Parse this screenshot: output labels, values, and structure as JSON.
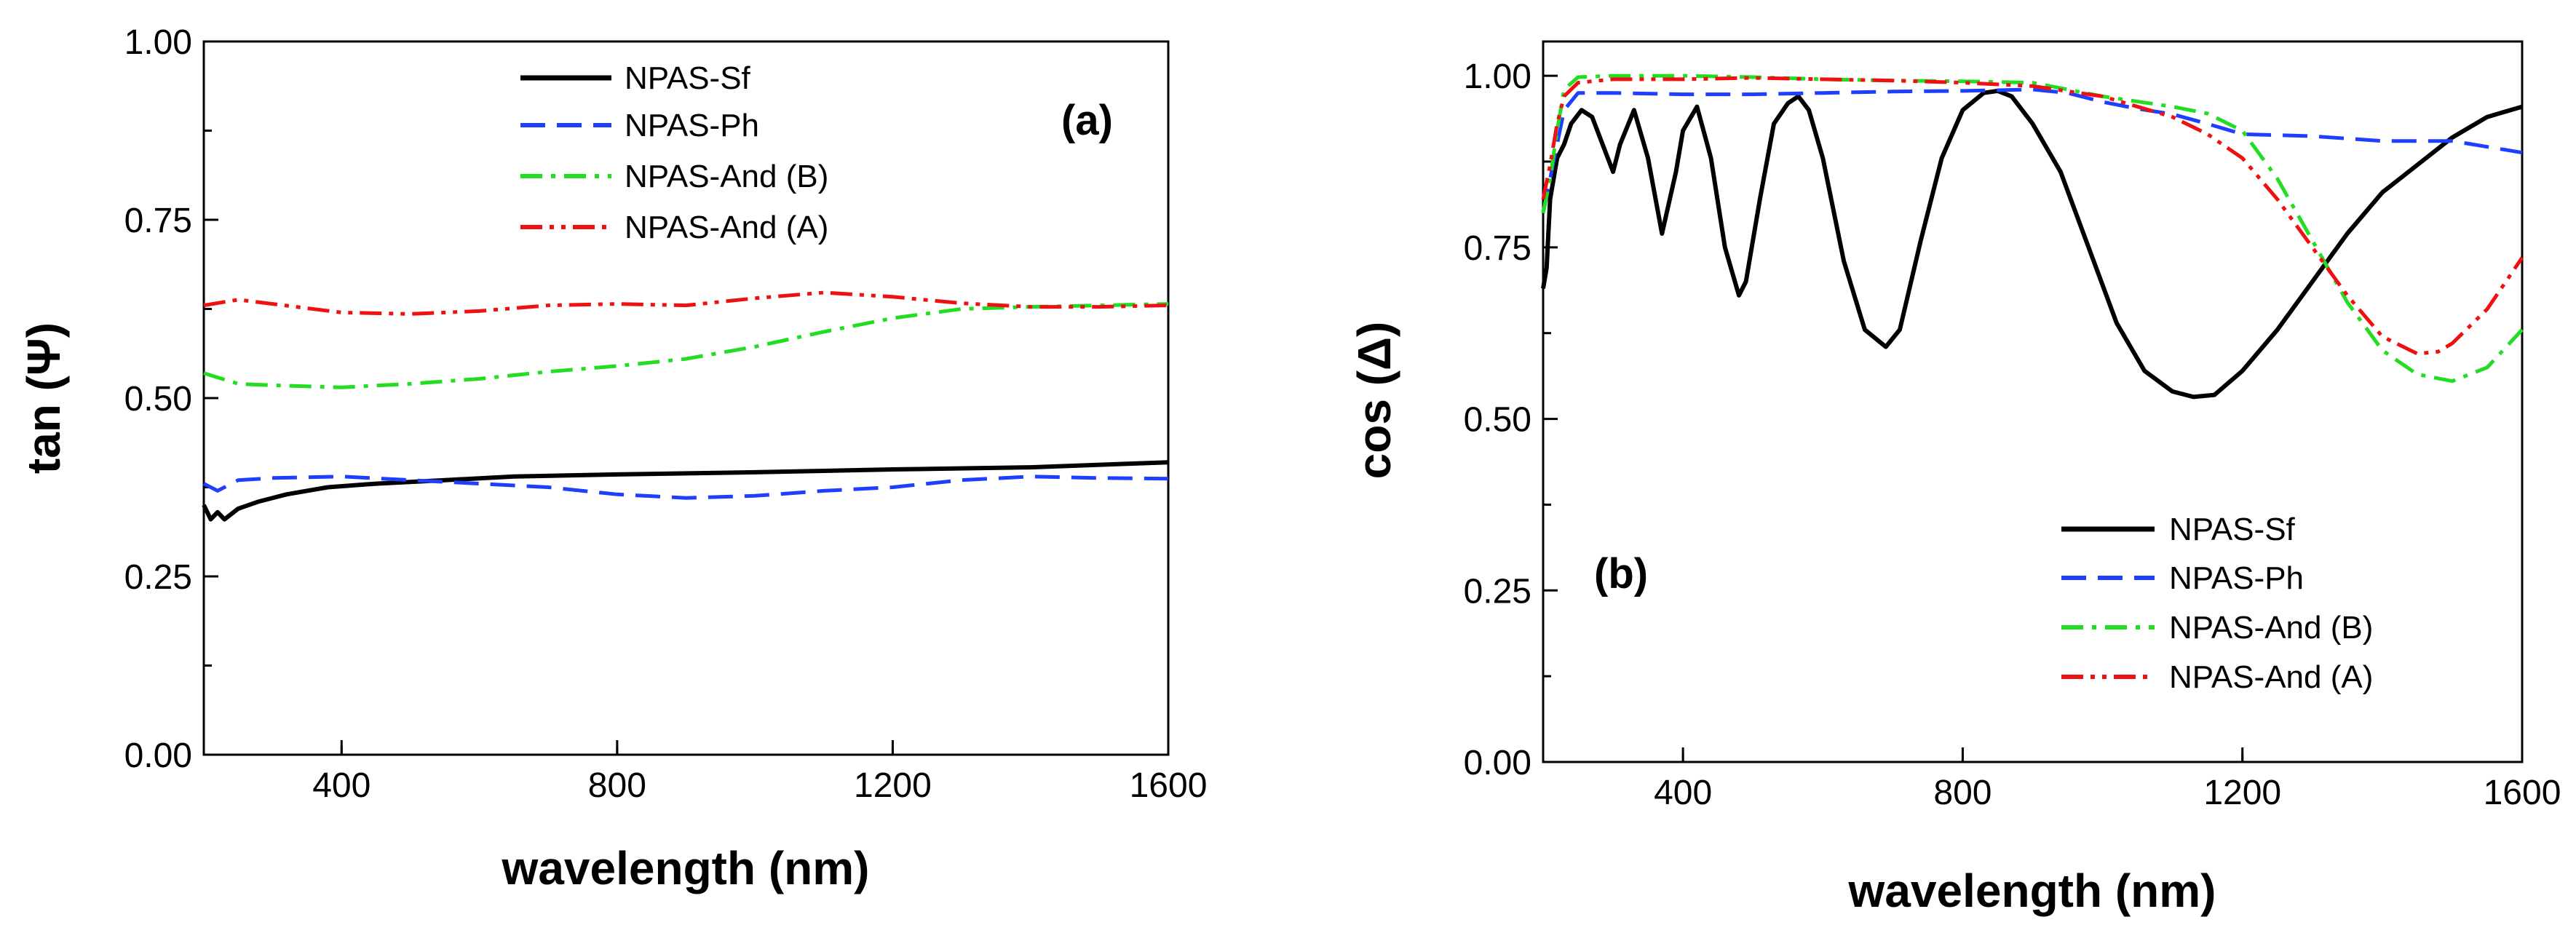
{
  "chart_data": [
    {
      "type": "line",
      "panel_label": "(a)",
      "xlabel": "wavelength (nm)",
      "ylabel": "tan (Ψ)",
      "xlim": [
        200,
        1600
      ],
      "ylim": [
        0,
        1
      ],
      "xticks": [
        400,
        800,
        1200,
        1600
      ],
      "xtick_labels": [
        "400",
        "800",
        "1200",
        "1600"
      ],
      "yticks": [
        0,
        0.25,
        0.5,
        0.75,
        1
      ],
      "ytick_labels": [
        "0.00",
        "0.25",
        "0.50",
        "0.75",
        "1.00"
      ],
      "legend_position": "top-center",
      "series": [
        {
          "name": "NPAS-Sf",
          "color": "#000000",
          "style": "solid",
          "x": [
            200,
            210,
            220,
            230,
            250,
            280,
            320,
            380,
            450,
            550,
            650,
            800,
            1000,
            1200,
            1400,
            1600
          ],
          "y": [
            0.35,
            0.33,
            0.34,
            0.33,
            0.345,
            0.355,
            0.365,
            0.375,
            0.38,
            0.385,
            0.39,
            0.393,
            0.396,
            0.4,
            0.403,
            0.41
          ]
        },
        {
          "name": "NPAS-Ph",
          "color": "#1f3fff",
          "style": "dashed",
          "x": [
            200,
            220,
            250,
            300,
            400,
            500,
            600,
            700,
            800,
            900,
            1000,
            1100,
            1200,
            1300,
            1400,
            1500,
            1600
          ],
          "y": [
            0.38,
            0.37,
            0.385,
            0.388,
            0.39,
            0.385,
            0.38,
            0.375,
            0.365,
            0.36,
            0.363,
            0.37,
            0.375,
            0.385,
            0.39,
            0.388,
            0.387
          ]
        },
        {
          "name": "NPAS-And (B)",
          "color": "#22dd22",
          "style": "dashdot",
          "x": [
            200,
            250,
            300,
            400,
            500,
            600,
            700,
            800,
            900,
            1000,
            1100,
            1200,
            1300,
            1400,
            1500,
            1600
          ],
          "y": [
            0.535,
            0.52,
            0.518,
            0.515,
            0.52,
            0.527,
            0.537,
            0.545,
            0.555,
            0.572,
            0.593,
            0.612,
            0.625,
            0.628,
            0.63,
            0.632
          ]
        },
        {
          "name": "NPAS-And (A)",
          "color": "#ee1111",
          "style": "dashdotdot",
          "x": [
            200,
            250,
            300,
            400,
            500,
            600,
            700,
            800,
            900,
            1000,
            1100,
            1200,
            1300,
            1400,
            1500,
            1600
          ],
          "y": [
            0.63,
            0.638,
            0.632,
            0.62,
            0.618,
            0.622,
            0.63,
            0.632,
            0.63,
            0.64,
            0.648,
            0.642,
            0.633,
            0.628,
            0.628,
            0.63
          ]
        }
      ]
    },
    {
      "type": "line",
      "panel_label": "(b)",
      "xlabel": "wavelength (nm)",
      "ylabel": "cos (Δ)",
      "xlim": [
        200,
        1600
      ],
      "ylim": [
        0,
        1.05
      ],
      "xticks": [
        400,
        800,
        1200,
        1600
      ],
      "xtick_labels": [
        "400",
        "800",
        "1200",
        "1600"
      ],
      "yticks": [
        0,
        0.25,
        0.5,
        0.75,
        1
      ],
      "ytick_labels": [
        "0.00",
        "0.25",
        "0.50",
        "0.75",
        "1.00"
      ],
      "legend_position": "bottom-right",
      "series": [
        {
          "name": "NPAS-Sf",
          "color": "#000000",
          "style": "solid",
          "x": [
            200,
            205,
            210,
            220,
            230,
            240,
            255,
            270,
            285,
            300,
            310,
            330,
            350,
            370,
            390,
            400,
            420,
            440,
            460,
            480,
            490,
            510,
            530,
            550,
            565,
            580,
            600,
            630,
            660,
            690,
            710,
            740,
            770,
            800,
            830,
            850,
            870,
            900,
            940,
            980,
            1020,
            1060,
            1100,
            1130,
            1160,
            1200,
            1250,
            1300,
            1350,
            1400,
            1450,
            1500,
            1550,
            1600
          ],
          "y": [
            0.69,
            0.72,
            0.82,
            0.88,
            0.9,
            0.93,
            0.95,
            0.94,
            0.9,
            0.86,
            0.9,
            0.95,
            0.88,
            0.77,
            0.86,
            0.92,
            0.955,
            0.88,
            0.75,
            0.68,
            0.7,
            0.82,
            0.93,
            0.96,
            0.97,
            0.95,
            0.88,
            0.73,
            0.63,
            0.605,
            0.63,
            0.76,
            0.88,
            0.95,
            0.975,
            0.978,
            0.97,
            0.93,
            0.86,
            0.75,
            0.64,
            0.57,
            0.54,
            0.532,
            0.535,
            0.57,
            0.63,
            0.7,
            0.77,
            0.83,
            0.87,
            0.91,
            0.94,
            0.955
          ]
        },
        {
          "name": "NPAS-Ph",
          "color": "#1f3fff",
          "style": "dashed",
          "x": [
            200,
            210,
            220,
            230,
            250,
            300,
            400,
            500,
            600,
            700,
            800,
            900,
            950,
            1000,
            1050,
            1100,
            1150,
            1200,
            1300,
            1400,
            1500,
            1600
          ],
          "y": [
            0.8,
            0.85,
            0.9,
            0.95,
            0.975,
            0.975,
            0.973,
            0.973,
            0.975,
            0.977,
            0.978,
            0.98,
            0.975,
            0.962,
            0.952,
            0.944,
            0.93,
            0.915,
            0.912,
            0.905,
            0.905,
            0.888
          ]
        },
        {
          "name": "NPAS-And (B)",
          "color": "#22dd22",
          "style": "dashdot",
          "x": [
            200,
            210,
            220,
            230,
            250,
            300,
            400,
            500,
            600,
            700,
            800,
            900,
            1000,
            1100,
            1150,
            1200,
            1250,
            1300,
            1350,
            1400,
            1450,
            1500,
            1550,
            1600
          ],
          "y": [
            0.8,
            0.85,
            0.92,
            0.98,
            0.998,
            1.0,
            1.0,
            0.998,
            0.995,
            0.993,
            0.992,
            0.99,
            0.97,
            0.955,
            0.945,
            0.92,
            0.85,
            0.76,
            0.67,
            0.6,
            0.565,
            0.555,
            0.575,
            0.63
          ]
        },
        {
          "name": "NPAS-And (A)",
          "color": "#ee1111",
          "style": "dashdotdot",
          "x": [
            200,
            210,
            220,
            230,
            250,
            300,
            400,
            500,
            600,
            700,
            800,
            900,
            1000,
            1100,
            1150,
            1200,
            1250,
            1300,
            1350,
            1400,
            1450,
            1480,
            1500,
            1550,
            1600
          ],
          "y": [
            0.82,
            0.87,
            0.93,
            0.97,
            0.99,
            0.995,
            0.995,
            0.997,
            0.995,
            0.993,
            0.99,
            0.985,
            0.97,
            0.94,
            0.915,
            0.88,
            0.82,
            0.75,
            0.68,
            0.62,
            0.595,
            0.598,
            0.61,
            0.66,
            0.735
          ]
        }
      ]
    }
  ]
}
